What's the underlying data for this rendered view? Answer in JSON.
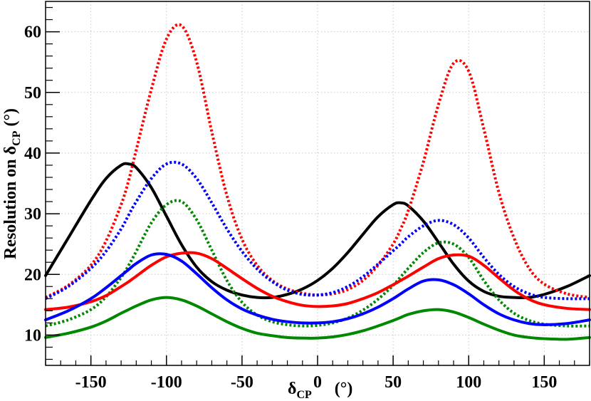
{
  "chart_data": {
    "type": "line",
    "title": "",
    "xlabel": {
      "symbol": "δ",
      "sub": "CP",
      "unit": " (°)"
    },
    "ylabel": {
      "prefix": "Resolution on ",
      "symbol": "δ",
      "sub": "CP",
      "unit": " (°)"
    },
    "xlim": [
      -180,
      180
    ],
    "ylim": [
      5,
      65
    ],
    "grid": true,
    "xticks": [
      -150,
      -100,
      -50,
      0,
      50,
      100,
      150
    ],
    "xtick_labels": [
      "-150",
      "-100",
      "-50",
      "0",
      "50",
      "100",
      "150"
    ],
    "yticks": [
      10,
      20,
      30,
      40,
      50,
      60
    ],
    "ytick_labels": [
      "10",
      "20",
      "30",
      "40",
      "50",
      "60"
    ],
    "x": [
      -180,
      -165,
      -150,
      -140,
      -130,
      -125,
      -120,
      -110,
      -100,
      -90,
      -80,
      -70,
      -60,
      -50,
      -40,
      -30,
      -20,
      -10,
      0,
      10,
      20,
      30,
      40,
      50,
      55,
      60,
      70,
      80,
      90,
      100,
      110,
      120,
      130,
      140,
      150,
      165,
      180
    ],
    "series": [
      {
        "name": "black-solid",
        "color": "#000000",
        "dash": "solid",
        "values": [
          19.8,
          26.0,
          32.2,
          35.8,
          38.0,
          38.2,
          37.6,
          34.3,
          29.6,
          24.9,
          21.2,
          18.8,
          17.4,
          16.6,
          16.2,
          16.2,
          16.7,
          17.6,
          19.0,
          21.0,
          23.6,
          26.6,
          29.5,
          31.5,
          31.8,
          31.3,
          28.8,
          25.3,
          21.7,
          18.9,
          17.2,
          16.4,
          16.2,
          16.2,
          16.7,
          18.0,
          19.8
        ]
      },
      {
        "name": "red-dotted",
        "color": "#ff0000",
        "dash": "dotted",
        "values": [
          16.2,
          18.2,
          21.5,
          25.5,
          31.5,
          35.5,
          40.5,
          50.5,
          58.8,
          61.0,
          55.0,
          43.5,
          33.0,
          25.8,
          21.5,
          19.0,
          17.6,
          16.9,
          16.6,
          16.8,
          17.5,
          19.0,
          21.5,
          25.0,
          27.5,
          30.5,
          38.5,
          48.0,
          54.8,
          53.5,
          44.0,
          33.5,
          26.0,
          21.0,
          18.4,
          16.8,
          16.2
        ]
      },
      {
        "name": "blue-dotted",
        "color": "#0000ff",
        "dash": "dotted",
        "values": [
          16.0,
          18.0,
          21.0,
          23.8,
          27.5,
          29.8,
          32.0,
          35.8,
          38.2,
          38.2,
          35.8,
          31.8,
          27.5,
          23.8,
          20.9,
          18.8,
          17.4,
          16.7,
          16.6,
          17.0,
          18.0,
          19.6,
          21.7,
          23.9,
          25.0,
          26.2,
          28.0,
          28.9,
          28.2,
          26.0,
          22.8,
          20.0,
          18.0,
          16.8,
          16.2,
          16.0,
          16.0
        ]
      },
      {
        "name": "green-dotted",
        "color": "#008800",
        "dash": "dotted",
        "values": [
          11.5,
          12.5,
          14.2,
          16.3,
          19.5,
          21.5,
          23.8,
          28.5,
          31.5,
          32.0,
          29.0,
          24.0,
          19.0,
          15.4,
          13.3,
          12.2,
          11.7,
          11.5,
          11.6,
          12.0,
          12.8,
          14.1,
          15.9,
          18.2,
          19.6,
          21.0,
          23.6,
          25.2,
          25.0,
          22.8,
          19.0,
          15.8,
          13.6,
          12.4,
          11.8,
          11.5,
          11.5
        ]
      },
      {
        "name": "red-solid",
        "color": "#ff0000",
        "dash": "solid",
        "values": [
          14.2,
          14.6,
          15.5,
          16.5,
          18.0,
          18.8,
          19.7,
          21.5,
          22.9,
          23.5,
          23.5,
          22.6,
          21.0,
          19.3,
          17.7,
          16.4,
          15.5,
          14.9,
          14.7,
          14.8,
          15.2,
          16.0,
          17.0,
          18.3,
          19.0,
          19.7,
          21.2,
          22.6,
          23.2,
          23.0,
          21.5,
          19.4,
          17.4,
          15.9,
          15.0,
          14.4,
          14.2
        ]
      },
      {
        "name": "blue-solid",
        "color": "#0000ff",
        "dash": "solid",
        "values": [
          12.5,
          14.0,
          16.0,
          17.8,
          19.8,
          20.8,
          21.8,
          23.2,
          23.3,
          22.2,
          20.1,
          17.8,
          15.8,
          14.3,
          13.3,
          12.6,
          12.2,
          12.0,
          12.0,
          12.2,
          12.7,
          13.5,
          14.6,
          16.0,
          16.8,
          17.6,
          18.9,
          19.1,
          18.3,
          16.8,
          15.0,
          13.5,
          12.5,
          11.9,
          11.7,
          11.9,
          12.5
        ]
      },
      {
        "name": "green-solid",
        "color": "#008800",
        "dash": "solid",
        "values": [
          9.6,
          10.3,
          11.3,
          12.3,
          13.6,
          14.2,
          14.8,
          15.8,
          16.2,
          15.8,
          14.8,
          13.5,
          12.2,
          11.1,
          10.3,
          9.9,
          9.6,
          9.5,
          9.5,
          9.7,
          10.1,
          10.7,
          11.5,
          12.4,
          12.9,
          13.4,
          14.0,
          14.2,
          13.8,
          12.9,
          11.8,
          10.8,
          10.0,
          9.6,
          9.4,
          9.3,
          9.6
        ]
      }
    ]
  }
}
